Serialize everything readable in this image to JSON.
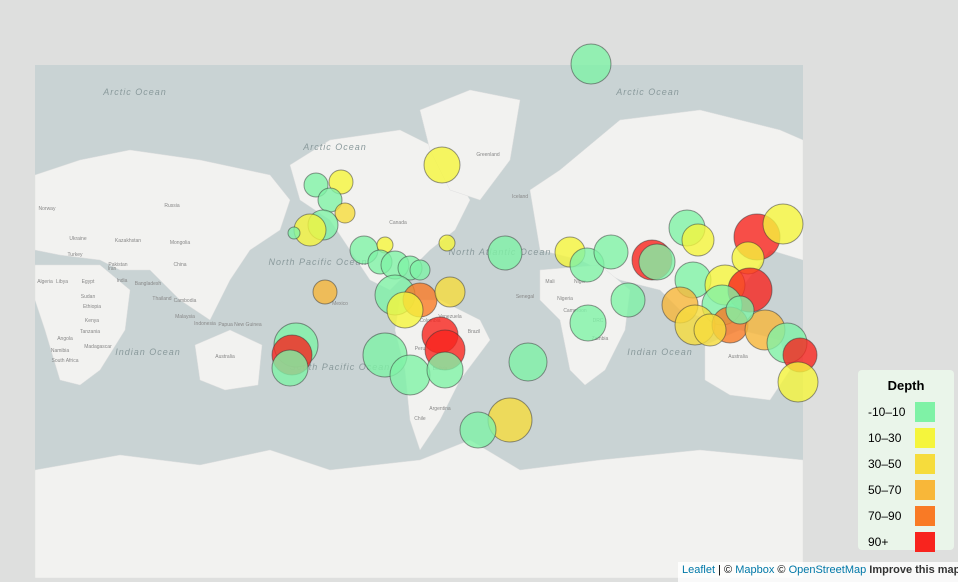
{
  "map": {
    "labels": [
      "Arctic Ocean",
      "Arctic Ocean",
      "Arctic Ocean",
      "North Pacific Ocean",
      "North Atlantic Ocean",
      "South Pacific Ocean",
      "Indian Ocean",
      "Indian Ocean",
      "Greenland",
      "Russia",
      "Canada",
      "China",
      "Mongolia",
      "Kazakhstan",
      "Australia",
      "Australia",
      "Brazil",
      "Iceland",
      "Norway",
      "Ukraine",
      "Turkey",
      "Iran",
      "Algeria",
      "Libya",
      "Egypt",
      "Sudan",
      "Ethiopia",
      "Kenya",
      "Tanzania",
      "Angola",
      "Namibia",
      "South Africa",
      "Madagascar",
      "India",
      "Pakistan",
      "Bangladesh",
      "Thailand",
      "Cambodia",
      "Malaysia",
      "Indonesia",
      "Papua New Guinea",
      "Mexico",
      "Venezuela",
      "Colombia",
      "Peru",
      "Bolivia",
      "Argentina",
      "Chile",
      "Senegal",
      "Mali",
      "Niger",
      "Nigeria",
      "Cameroon",
      "DRC",
      "Zambia"
    ]
  },
  "legend": {
    "title": "Depth",
    "items": [
      {
        "label": "-10–10",
        "color": "#7ff2a6"
      },
      {
        "label": "10–30",
        "color": "#f5f53c"
      },
      {
        "label": "30–50",
        "color": "#f6dc3c"
      },
      {
        "label": "50–70",
        "color": "#f8b739"
      },
      {
        "label": "70–90",
        "color": "#f97a25"
      },
      {
        "label": "90+",
        "color": "#f8241e"
      }
    ]
  },
  "attribution": {
    "leaflet": "Leaflet",
    "sep": "|",
    "copy1": "©",
    "mapbox": "Mapbox",
    "copy2": "©",
    "osm": "OpenStreetMap",
    "improve": "Improve this map"
  }
}
